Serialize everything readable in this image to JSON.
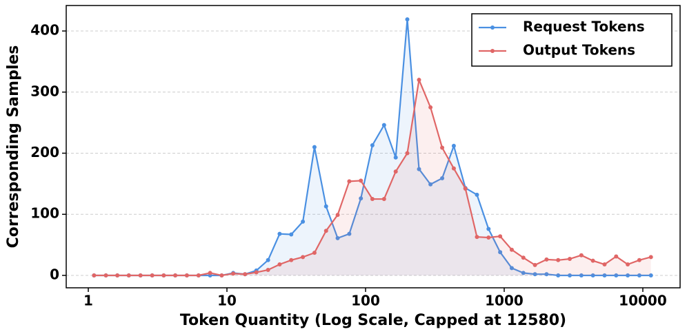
{
  "chart_data": {
    "type": "line",
    "xlabel": "Token Quantity (Log Scale, Capped at 12580)",
    "ylabel": "Corresponding Samples",
    "x": [
      1.1,
      1.34,
      1.62,
      1.96,
      2.38,
      2.89,
      3.5,
      4.24,
      5.14,
      6.24,
      7.56,
      9.17,
      11.1,
      13.5,
      16.3,
      19.8,
      24.0,
      29.1,
      35.3,
      42.8,
      51.9,
      62.9,
      76.3,
      92.5,
      112,
      136,
      165,
      200,
      243,
      294,
      357,
      433,
      525,
      636,
      771,
      935,
      1134,
      1375,
      1667,
      2021,
      2450,
      2971,
      3602,
      4367,
      5295,
      6419,
      7783,
      9436,
      11440
    ],
    "series": [
      {
        "name": "Request Tokens",
        "color": "#4a90e2",
        "values": [
          0,
          0,
          0,
          0,
          0,
          0,
          0,
          0,
          0,
          0,
          0,
          0,
          4,
          2,
          8,
          25,
          68,
          67,
          88,
          210,
          113,
          61,
          68,
          126,
          213,
          246,
          193,
          419,
          174,
          149,
          159,
          212,
          143,
          132,
          76,
          38,
          12,
          4,
          2,
          2,
          0,
          0,
          0,
          0,
          0,
          0,
          0,
          0,
          0
        ]
      },
      {
        "name": "Output Tokens",
        "color": "#e06666",
        "values": [
          0,
          0,
          0,
          0,
          0,
          0,
          0,
          0,
          0,
          0,
          4,
          0,
          3,
          2,
          5,
          9,
          18,
          25,
          30,
          37,
          73,
          99,
          154,
          155,
          125,
          125,
          170,
          200,
          320,
          275,
          209,
          175,
          142,
          63,
          62,
          64,
          42,
          29,
          17,
          26,
          25,
          27,
          33,
          24,
          18,
          31,
          18,
          25,
          30
        ]
      }
    ],
    "xlim": [
      0.693,
      18570
    ],
    "ylim": [
      -20.3,
      441.7
    ],
    "xticks": [
      1,
      10,
      100,
      1000,
      10000
    ],
    "yticks": [
      0,
      100,
      200,
      300,
      400
    ],
    "log_x": true,
    "grid": "y",
    "legend": "upper right"
  }
}
